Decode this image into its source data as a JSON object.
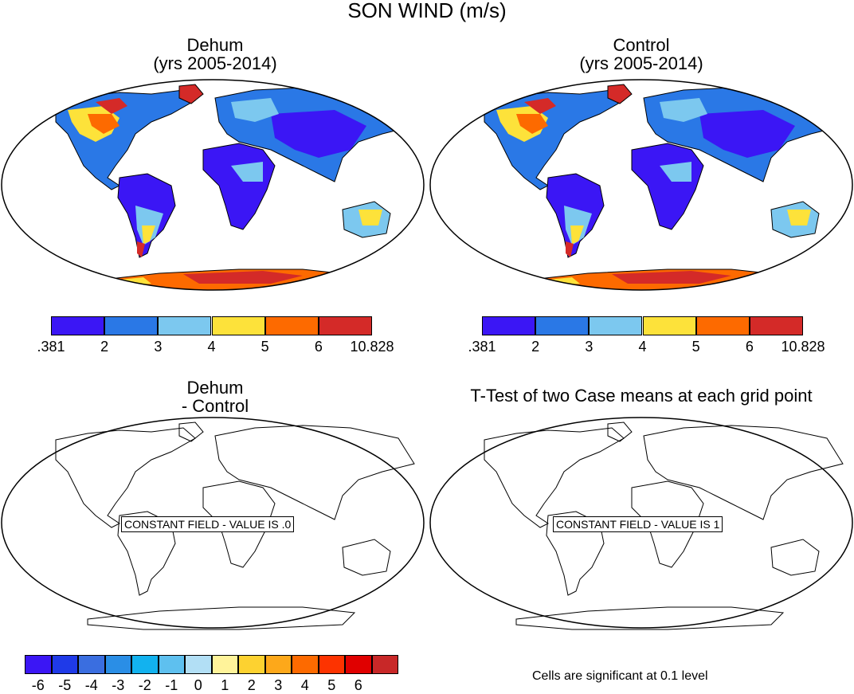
{
  "figure": {
    "title": "SON WIND (m/s)"
  },
  "panels": {
    "top_left": {
      "title_line1": "Dehum",
      "title_line2": "(yrs 2005-2014)"
    },
    "top_right": {
      "title_line1": "Control",
      "title_line2": "(yrs 2005-2014)"
    },
    "bottom_left": {
      "title_line1": "Dehum",
      "title_line2": "- Control",
      "message": "CONSTANT FIELD - VALUE IS .0"
    },
    "bottom_right": {
      "title": "T-Test of two Case means at each grid point",
      "message": "CONSTANT FIELD - VALUE IS 1"
    }
  },
  "colorbars": {
    "wind": {
      "labels": [
        ".381",
        "2",
        "3",
        "4",
        "5",
        "6",
        "10.828"
      ],
      "colors": [
        "#3b16f5",
        "#2a78e6",
        "#7cc8ef",
        "#fde23a",
        "#fd6a00",
        "#d42a28"
      ]
    },
    "difference": {
      "labels": [
        "-6",
        "-5",
        "-4",
        "-3",
        "-2",
        "-1",
        "0",
        "1",
        "2",
        "3",
        "4",
        "5",
        "6"
      ],
      "colors": [
        "#3b16f5",
        "#1f3ae8",
        "#3a6ee0",
        "#2a8ee6",
        "#12b2ef",
        "#5ec0ef",
        "#b2dff5",
        "#fff39a",
        "#fdd230",
        "#fda81a",
        "#fd6a00",
        "#fd3300",
        "#e00000",
        "#c82828"
      ]
    },
    "significance_note": "Cells are significant at 0.1 level"
  },
  "colors": {
    "land_low": "#3b16f5",
    "land_mid": "#2a78e6",
    "land_light": "#7cc8ef",
    "land_yellow": "#fde23a",
    "land_orange": "#fd6a00",
    "land_red": "#d42a28"
  }
}
